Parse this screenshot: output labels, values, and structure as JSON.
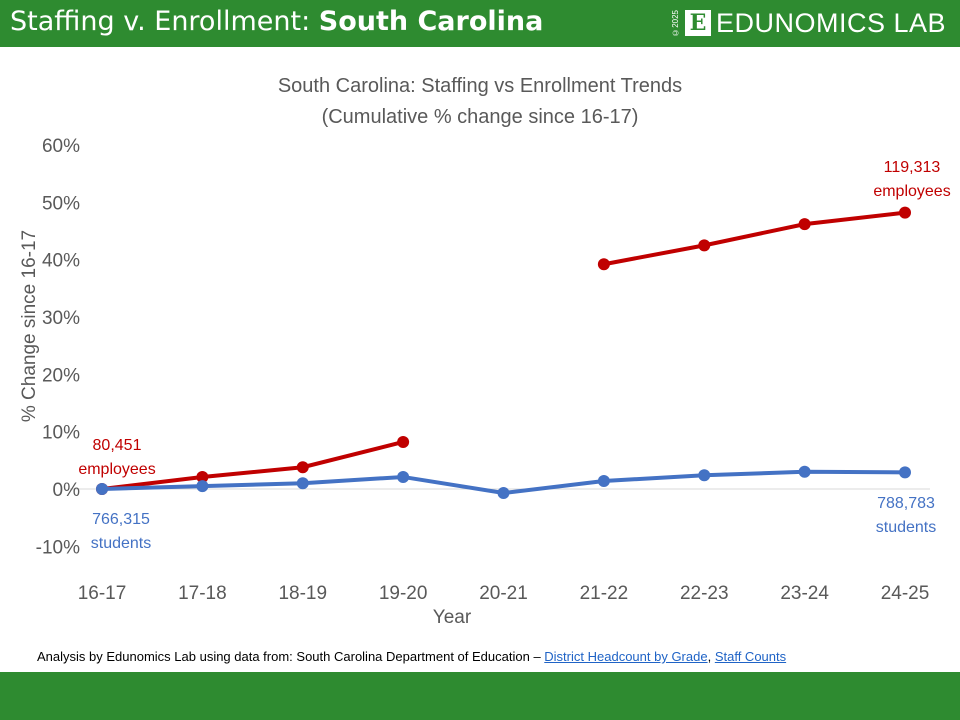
{
  "header": {
    "title_prefix": "Staffing v. Enrollment: ",
    "title_state": "South Carolina",
    "logo_text": "EDUNOMICS LAB",
    "logo_letter": "E",
    "copyright": "©2025"
  },
  "source": {
    "prefix": "Analysis by Edunomics Lab using data from: South Carolina Department of Education – ",
    "link1": "District Headcount by Grade",
    "sep": ", ",
    "link2": "Staff Counts"
  },
  "colors": {
    "brand": "#2e8b30",
    "staff": "#c00000",
    "students": "#4472c4"
  },
  "chart_data": {
    "type": "line",
    "title": "South Carolina: Staffing vs Enrollment Trends",
    "subtitle": "(Cumulative % change since 16-17)",
    "xlabel": "Year",
    "ylabel": "% Change since 16-17",
    "categories": [
      "16-17",
      "17-18",
      "18-19",
      "19-20",
      "20-21",
      "21-22",
      "22-23",
      "23-24",
      "24-25"
    ],
    "ylim": [
      -10,
      60
    ],
    "yticks": [
      -10,
      0,
      10,
      20,
      30,
      40,
      50,
      60
    ],
    "ytick_labels": [
      "-10%",
      "0%",
      "10%",
      "20%",
      "30%",
      "40%",
      "50%",
      "60%"
    ],
    "grid": false,
    "series": [
      {
        "key": "staff",
        "color": "#c00000",
        "values": [
          0,
          2.1,
          3.8,
          8.2,
          null,
          39.2,
          42.5,
          46.2,
          48.2
        ]
      },
      {
        "key": "students",
        "color": "#4472c4",
        "values": [
          0,
          0.5,
          1.0,
          2.1,
          -0.7,
          1.4,
          2.4,
          3.0,
          2.9
        ]
      }
    ],
    "annotations": {
      "staff_start": [
        "80,451",
        "employees"
      ],
      "staff_end": [
        "119,313",
        "employees"
      ],
      "students_start": [
        "766,315",
        "students"
      ],
      "students_end": [
        "788,783",
        "students"
      ]
    }
  }
}
